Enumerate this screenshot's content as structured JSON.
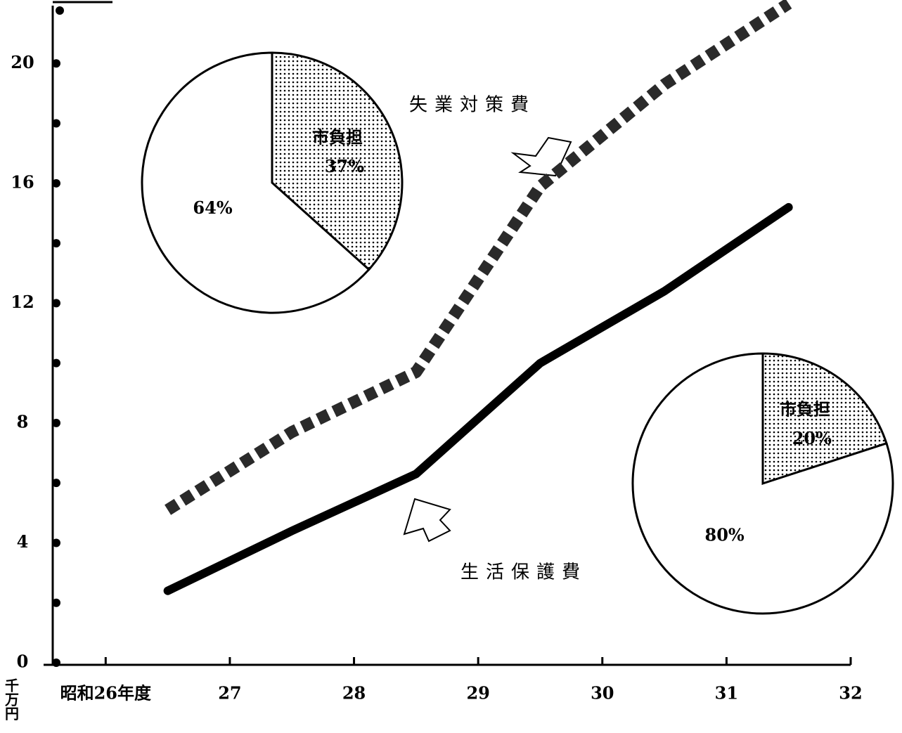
{
  "chart_data": [
    {
      "type": "line",
      "ylabel": "千万円",
      "x": [
        26.5,
        27.5,
        28.5,
        29.5,
        30.5,
        31.5
      ],
      "xlim": [
        25.5,
        32
      ],
      "xticks": [
        {
          "value": 26,
          "label": "昭和26年度"
        },
        27,
        28,
        29,
        30,
        31,
        32
      ],
      "ylim": [
        0,
        22
      ],
      "yticks": [
        0,
        4,
        8,
        12,
        16,
        20
      ],
      "series": [
        {
          "name": "失業対策費",
          "color": "#2a2a2a",
          "style": "dotted",
          "values": [
            5.1,
            7.7,
            9.7,
            15.9,
            19.3,
            22
          ]
        },
        {
          "name": "生活保護費",
          "color": "#000000",
          "style": "solid",
          "values": [
            2.4,
            4.4,
            6.3,
            10.0,
            12.4,
            15.2
          ]
        }
      ]
    },
    {
      "type": "pie",
      "categories": [
        "市負担",
        null
      ],
      "values": [
        37,
        64
      ],
      "value_labels": [
        "37%",
        "64%"
      ]
    },
    {
      "type": "pie",
      "categories": [
        "市負担",
        null
      ],
      "values": [
        20,
        80
      ],
      "value_labels": [
        "20%",
        "80%"
      ]
    }
  ]
}
